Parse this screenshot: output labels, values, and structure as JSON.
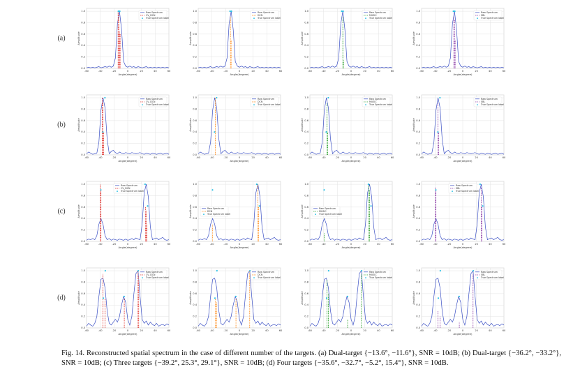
{
  "figure": {
    "xlim": [
      -60,
      60
    ],
    "xticks": [
      -60,
      -40,
      -20,
      0,
      20,
      40,
      60
    ],
    "ylim": [
      0,
      1.05
    ],
    "yticks": [
      {
        "value": 0,
        "label": "0.0"
      },
      0.2,
      0.4,
      0.6,
      0.8,
      {
        "value": 1,
        "label": "1.0"
      }
    ],
    "xlabel": "Angle(degree)",
    "ylabel": "Amplitude",
    "raw_name": "Raw Spectrum",
    "raw_color": "#3a4fc4",
    "true_name": "True Spectrum label",
    "true_color": "#2bc0e4",
    "grid": true,
    "spectrum_x": [
      -60,
      -57,
      -54,
      -51,
      -48,
      -45,
      -42,
      -39,
      -36,
      -33,
      -30,
      -27,
      -24,
      -21,
      -18,
      -15,
      -12,
      -9,
      -6,
      -3,
      0,
      3,
      6,
      9,
      12,
      15,
      18,
      21,
      24,
      27,
      30,
      33,
      36,
      39,
      42,
      45,
      48,
      51,
      54,
      57,
      60
    ],
    "methods": [
      {
        "name": "CV_DCN",
        "color": "#e0312b"
      },
      {
        "name": "DCN",
        "color": "#ff8c1a"
      },
      {
        "name": "MUSIC",
        "color": "#2ca02c"
      },
      {
        "name": "SBL",
        "color": "#8e3fa8"
      }
    ],
    "rows": [
      {
        "label": "(a)",
        "raw": [
          0.01,
          0.02,
          0.01,
          0.02,
          0.01,
          0.02,
          0.03,
          0.01,
          0.02,
          0.03,
          0.02,
          0.04,
          0.02,
          0.04,
          0.18,
          0.78,
          1.0,
          0.68,
          0.12,
          0.04,
          0.02,
          0.04,
          0.02,
          0.03,
          0.01,
          0.03,
          0.02,
          0.01,
          0.02,
          0.03,
          0.01,
          0.02,
          0.01,
          0.02,
          0.01,
          0.02,
          0.01,
          0.02,
          0.01,
          0.02,
          0.01
        ],
        "true_x": [
          -13.6,
          -11.6
        ],
        "true_y": [
          1.0,
          1.0
        ],
        "estimates": [
          {
            "x": [
              -14,
              -13,
              -12,
              -11
            ],
            "y": [
              1.0,
              0.95,
              0.65,
              0.6
            ]
          },
          {
            "x": [
              -13,
              -12
            ],
            "y": [
              0.9,
              0.5
            ]
          },
          {
            "x": [
              -12,
              -11
            ],
            "y": [
              0.9,
              0.15
            ]
          },
          {
            "x": [
              -13,
              -12,
              -11
            ],
            "y": [
              0.9,
              0.85,
              0.5
            ]
          }
        ],
        "legend": [
          "upper right",
          "upper right",
          "upper right",
          "upper right"
        ]
      },
      {
        "label": "(b)",
        "raw": [
          0.02,
          0.05,
          0.03,
          0.01,
          0.02,
          0.03,
          0.22,
          0.78,
          1.0,
          0.82,
          0.28,
          0.02,
          0.06,
          0.08,
          0.04,
          0.02,
          0.05,
          0.03,
          0.02,
          0.04,
          0.03,
          0.02,
          0.04,
          0.03,
          0.02,
          0.03,
          0.04,
          0.02,
          0.01,
          0.03,
          0.02,
          0.01,
          0.03,
          0.02,
          0.01,
          0.02,
          0.03,
          0.01,
          0.02,
          0.03,
          0.01
        ],
        "true_x": [
          -36.2,
          -33.2
        ],
        "true_y": [
          0.4,
          1.0
        ],
        "estimates": [
          {
            "x": [
              -37,
              -36,
              -35
            ],
            "y": [
              1.0,
              0.9,
              0.4
            ]
          },
          {
            "x": [
              -35
            ],
            "y": [
              1.0
            ]
          },
          {
            "x": [
              -35,
              -34
            ],
            "y": [
              0.9,
              0.4
            ]
          },
          {
            "x": [
              -36,
              -35
            ],
            "y": [
              0.9,
              0.4
            ]
          }
        ],
        "legend": [
          "upper right",
          "upper right",
          "upper right",
          "upper right"
        ]
      },
      {
        "label": "(c)",
        "raw": [
          0.02,
          0.04,
          0.03,
          0.05,
          0.03,
          0.1,
          0.3,
          0.4,
          0.3,
          0.1,
          0.03,
          0.05,
          0.02,
          0.04,
          0.03,
          0.02,
          0.04,
          0.03,
          0.02,
          0.04,
          0.02,
          0.03,
          0.05,
          0.03,
          0.06,
          0.04,
          0.03,
          0.3,
          0.85,
          1.0,
          0.78,
          0.25,
          0.03,
          0.05,
          0.06,
          0.03,
          0.05,
          0.07,
          0.03,
          0.02,
          0.03
        ],
        "true_x": [
          -39.2,
          25.3,
          29.1
        ],
        "true_y": [
          0.9,
          1.0,
          0.62
        ],
        "estimates": [
          {
            "x": [
              -40,
              -39,
              26,
              27,
              28
            ],
            "y": [
              1.0,
              0.9,
              0.6,
              0.55,
              0.3
            ]
          },
          {
            "x": [
              -39,
              27,
              28
            ],
            "y": [
              0.3,
              1.0,
              0.6
            ]
          },
          {
            "x": [
              -39,
              26,
              27
            ],
            "y": [
              0.15,
              1.0,
              0.9
            ]
          },
          {
            "x": [
              -40,
              -39,
              27,
              28
            ],
            "y": [
              0.95,
              0.9,
              0.95,
              0.6
            ]
          }
        ],
        "legend": [
          "upper center",
          "center left",
          "center left",
          "upper center"
        ]
      },
      {
        "label": "(d)",
        "raw": [
          0.03,
          0.08,
          0.05,
          0.03,
          0.08,
          0.2,
          0.55,
          0.85,
          0.87,
          0.7,
          0.3,
          0.08,
          0.05,
          0.1,
          0.15,
          0.1,
          0.2,
          0.4,
          0.55,
          0.45,
          0.15,
          0.05,
          0.2,
          0.6,
          0.95,
          1.0,
          0.55,
          0.15,
          0.08,
          0.12,
          0.05,
          0.1,
          0.06,
          0.04,
          0.08,
          0.03,
          0.05,
          0.06,
          0.04,
          0.07,
          0.05
        ],
        "true_x": [
          -35.6,
          -32.7,
          -5.2,
          15.4
        ],
        "true_y": [
          0.52,
          1.0,
          0.55,
          1.0
        ],
        "estimates": [
          {
            "x": [
              -36,
              -33,
              -5,
              15,
              16
            ],
            "y": [
              0.95,
              0.5,
              0.5,
              1.0,
              0.9
            ]
          },
          {
            "x": [
              -35,
              -33,
              -5,
              15
            ],
            "y": [
              0.5,
              0.45,
              0.5,
              1.0
            ]
          },
          {
            "x": [
              -35,
              -33,
              -5,
              15
            ],
            "y": [
              0.85,
              0.6,
              0.15,
              0.95
            ]
          },
          {
            "x": [
              -36,
              -33,
              -5,
              15
            ],
            "y": [
              0.3,
              0.2,
              0.1,
              0.95
            ]
          }
        ],
        "legend": [
          "upper right",
          "upper right",
          "upper right",
          "upper right"
        ]
      }
    ],
    "caption": "Fig. 14.   Reconstructed spatial spectrum in the case of different number of the targets. (a) Dual-target {−13.6°, −11.6°}, SNR = 10dB; (b) Dual-target {−36.2°, −33.2°}, SNR = 10dB; (c) Three targets {−39.2°, 25.3°, 29.1°}, SNR = 10dB; (d) Four targets {−35.6°, −32.7°, −5.2°, 15.4°}, SNR = 10dB."
  }
}
